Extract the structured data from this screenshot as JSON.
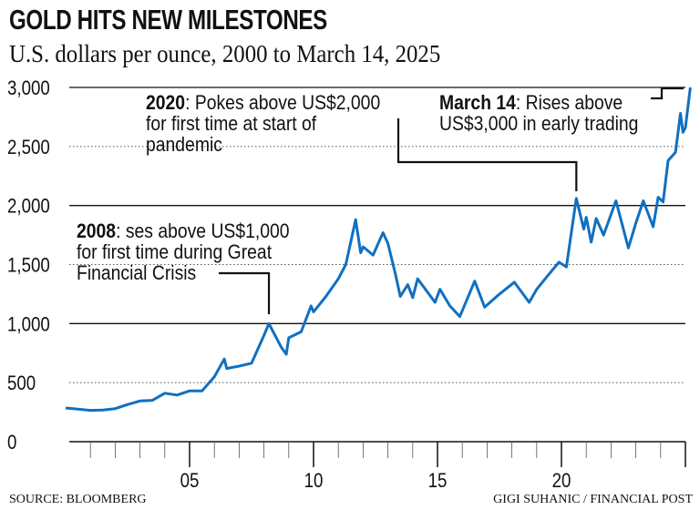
{
  "chart_data": {
    "type": "line",
    "title": "GOLD HITS NEW MILESTONES",
    "subtitle": "U.S. dollars per ounce, 2000 to March 14, 2025",
    "xlabel": "",
    "ylabel": "",
    "xlim": [
      2000,
      2025.2
    ],
    "ylim": [
      0,
      3000
    ],
    "y_ticks": [
      "0",
      "500",
      "1,000",
      "1,500",
      "2,000",
      "2,500",
      "3,000"
    ],
    "y_tick_values": [
      0,
      500,
      1000,
      1500,
      2000,
      2500,
      3000
    ],
    "x_tick_labels": [
      "05",
      "10",
      "15",
      "20"
    ],
    "x_tick_years": [
      2005,
      2010,
      2015,
      2020
    ],
    "grid": "horizontal",
    "line_color": "#1170c0",
    "x": [
      2000,
      2000.5,
      2001,
      2001.5,
      2002,
      2002.5,
      2003,
      2003.5,
      2004,
      2004.5,
      2005,
      2005.5,
      2006,
      2006.4,
      2006.5,
      2007,
      2007.5,
      2008,
      2008.2,
      2008.7,
      2008.9,
      2009,
      2009.5,
      2009.9,
      2010,
      2010.5,
      2011,
      2011.3,
      2011.7,
      2011.9,
      2012,
      2012.4,
      2012.8,
      2013,
      2013.3,
      2013.5,
      2013.8,
      2014,
      2014.2,
      2014.9,
      2015.1,
      2015.5,
      2015.9,
      2016.5,
      2016.9,
      2017.5,
      2018.1,
      2018.7,
      2019,
      2019.5,
      2019.9,
      2020.2,
      2020.6,
      2020.9,
      2021,
      2021.2,
      2021.4,
      2021.7,
      2022.2,
      2022.7,
      2023,
      2023.3,
      2023.7,
      2023.9,
      2024.1,
      2024.3,
      2024.6,
      2024.8,
      2024.9,
      2025,
      2025.2
    ],
    "values": [
      285,
      275,
      265,
      268,
      280,
      315,
      345,
      350,
      410,
      395,
      430,
      430,
      550,
      700,
      620,
      640,
      665,
      900,
      1000,
      800,
      740,
      880,
      930,
      1150,
      1100,
      1230,
      1380,
      1500,
      1880,
      1600,
      1650,
      1580,
      1770,
      1680,
      1420,
      1230,
      1330,
      1220,
      1380,
      1180,
      1290,
      1150,
      1060,
      1360,
      1140,
      1250,
      1350,
      1180,
      1290,
      1420,
      1520,
      1480,
      2060,
      1800,
      1900,
      1690,
      1890,
      1750,
      2040,
      1640,
      1850,
      2040,
      1820,
      2070,
      2030,
      2380,
      2450,
      2780,
      2620,
      2660,
      3000
    ],
    "annotations": [
      {
        "bold": "2008",
        "lines": [
          ": ses above US$1,000",
          "for first time during Great",
          "Financial Crisis"
        ],
        "x": 2008.2,
        "value": 1000
      },
      {
        "bold": "2020",
        "lines": [
          ": Pokes above US$2,000",
          "for first time at start of",
          "pandemic"
        ],
        "x": 2020.6,
        "value": 2060
      },
      {
        "bold": "March 14",
        "lines": [
          ": Rises above",
          "US$3,000 in early trading"
        ],
        "x": 2025.2,
        "value": 3000
      }
    ]
  },
  "footer": {
    "source": "SOURCE: BLOOMBERG",
    "credit": "GIGI SUHANIC / FINANCIAL POST"
  }
}
